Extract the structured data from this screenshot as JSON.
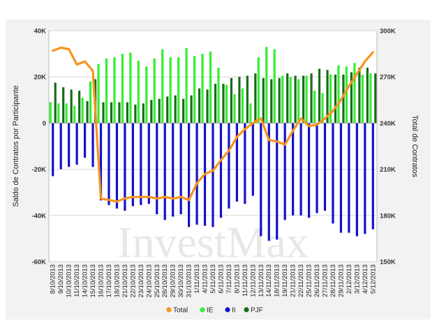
{
  "chart_data": {
    "type": "bar",
    "watermark": "InvestMax",
    "ylabel": "Saldo de Contratos por Participante",
    "y2label": "Total de Contratos",
    "ylim": [
      -60000,
      40000
    ],
    "y2lim": [
      150000,
      300000
    ],
    "y_ticks": [
      "40K",
      "20K",
      "0",
      "-20K",
      "-40K",
      "-60K"
    ],
    "y2_ticks": [
      "300K",
      "270K",
      "240K",
      "210K",
      "180K",
      "150K"
    ],
    "grid": true,
    "legend_position": "bottom",
    "colors": {
      "Total": "#f7941d",
      "IE": "#33ee33",
      "II": "#1111cc",
      "PJF": "#1a6b1a"
    },
    "categories": [
      "8/10/2013",
      "9/10/2013",
      "10/10/2013",
      "11/10/2013",
      "14/10/2013",
      "15/10/2013",
      "16/10/2013",
      "17/10/2013",
      "18/10/2013",
      "21/10/2013",
      "22/10/2013",
      "23/10/2013",
      "24/10/2013",
      "25/10/2013",
      "28/10/2013",
      "29/10/2013",
      "30/10/2013",
      "31/10/2013",
      "1/11/2013",
      "4/11/2013",
      "5/11/2013",
      "6/11/2013",
      "7/11/2013",
      "8/11/2013",
      "11/11/2013",
      "12/11/2013",
      "13/11/2013",
      "14/11/2013",
      "18/11/2013",
      "19/11/2013",
      "21/11/2013",
      "22/11/2013",
      "25/11/2013",
      "26/11/2013",
      "27/11/2013",
      "28/11/2013",
      "29/11/2013",
      "2/12/2013",
      "3/12/2013",
      "4/12/2013",
      "5/12/2013"
    ],
    "series": [
      {
        "name": "IE",
        "type": "bar",
        "axis": "left",
        "values": [
          9000,
          8500,
          8500,
          7500,
          11000,
          18000,
          25500,
          28000,
          28500,
          30000,
          30500,
          27000,
          24500,
          28000,
          32000,
          28500,
          28500,
          32500,
          29000,
          30000,
          31000,
          24000,
          16500,
          12500,
          15000,
          8500,
          28500,
          33000,
          32000,
          20500,
          20000,
          19000,
          20500,
          14000,
          13000,
          21000,
          25000,
          24500,
          26000,
          21000,
          21500
        ]
      },
      {
        "name": "II",
        "type": "bar",
        "axis": "left",
        "values": [
          -23000,
          -20000,
          -19000,
          -18000,
          -15000,
          -19000,
          -33500,
          -35500,
          -37000,
          -38000,
          -36000,
          -35500,
          -35000,
          -39500,
          -42000,
          -40500,
          -39500,
          -45000,
          -44000,
          -44500,
          -45000,
          -41000,
          -37000,
          -34000,
          -35000,
          -31500,
          -49000,
          -51000,
          -50500,
          -42000,
          -40000,
          -40000,
          -41000,
          -39000,
          -38000,
          -43500,
          -47500,
          -47500,
          -49000,
          -48000,
          -46000
        ]
      },
      {
        "name": "PJF",
        "type": "bar",
        "axis": "left",
        "values": [
          17500,
          15500,
          14500,
          14000,
          9500,
          19000,
          9000,
          9000,
          9000,
          9000,
          8000,
          8500,
          10000,
          10500,
          11500,
          12000,
          10500,
          12000,
          15000,
          14500,
          17000,
          17000,
          19500,
          20000,
          20500,
          21500,
          19500,
          19000,
          19500,
          21500,
          20500,
          20500,
          21500,
          23500,
          23000,
          21000,
          21000,
          22000,
          24000,
          24000,
          21500
        ]
      },
      {
        "name": "Total",
        "type": "line",
        "axis": "right",
        "values": [
          287000,
          289000,
          288000,
          278000,
          280000,
          274000,
          191000,
          190000,
          189000,
          191000,
          192000,
          192000,
          192000,
          191000,
          192000,
          191000,
          192000,
          190000,
          201000,
          207000,
          209000,
          216000,
          222000,
          231000,
          236000,
          240000,
          243000,
          229000,
          228000,
          226000,
          235000,
          243000,
          238000,
          239000,
          243000,
          248000,
          255000,
          264000,
          272000,
          280000,
          286000
        ]
      }
    ]
  }
}
